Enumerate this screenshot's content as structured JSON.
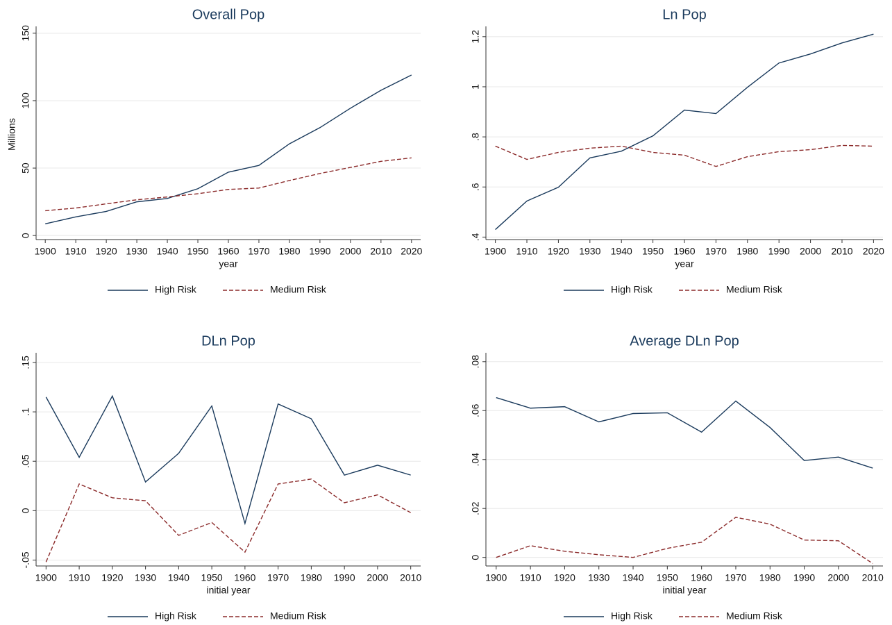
{
  "chart_data": [
    {
      "type": "line",
      "title": "Overall Pop",
      "xlabel": "year",
      "ylabel": "Millions",
      "x": [
        1900,
        1910,
        1920,
        1930,
        1940,
        1950,
        1960,
        1970,
        1980,
        1990,
        2000,
        2010,
        2020
      ],
      "xlim": [
        1897,
        2023
      ],
      "xticks": [
        1900,
        1910,
        1920,
        1930,
        1940,
        1950,
        1960,
        1970,
        1980,
        1990,
        2000,
        2010,
        2020
      ],
      "ylim": [
        -3,
        153
      ],
      "yticks": [
        0,
        50,
        100,
        150
      ],
      "grid": true,
      "legend": "bottom",
      "series": [
        {
          "name": "High Risk",
          "color": "#1a3a5c",
          "style": "solid",
          "values": [
            8.7,
            13.8,
            17.9,
            25,
            27.5,
            34.7,
            47,
            52,
            68,
            80,
            94.4,
            107.7,
            119
          ]
        },
        {
          "name": "Medium Risk",
          "color": "#8b2a2a",
          "style": "dashed",
          "values": [
            18.4,
            20.4,
            23.5,
            26.5,
            28.6,
            31,
            34.2,
            35.2,
            40.8,
            46,
            50.5,
            55,
            57.6
          ]
        }
      ]
    },
    {
      "type": "line",
      "title": "Ln Pop",
      "xlabel": "year",
      "x": [
        1900,
        1910,
        1920,
        1930,
        1940,
        1950,
        1960,
        1970,
        1980,
        1990,
        2000,
        2010,
        2020
      ],
      "xlim": [
        1897,
        2023
      ],
      "xticks": [
        1900,
        1910,
        1920,
        1930,
        1940,
        1950,
        1960,
        1970,
        1980,
        1990,
        2000,
        2010,
        2020
      ],
      "ylim": [
        0.39,
        1.23
      ],
      "yticks": [
        {
          "value": 0.4,
          "label": ".4"
        },
        {
          "value": 0.6,
          "label": ".6"
        },
        {
          "value": 0.8,
          "label": ".8"
        },
        1,
        1.2
      ],
      "grid": true,
      "legend": "bottom",
      "series": [
        {
          "name": "High Risk",
          "color": "#1a3a5c",
          "style": "solid",
          "values": [
            0.43,
            0.544,
            0.599,
            0.716,
            0.743,
            0.804,
            0.907,
            0.893,
            0.998,
            1.095,
            1.131,
            1.175,
            1.21
          ]
        },
        {
          "name": "Medium Risk",
          "color": "#8b2a2a",
          "style": "dashed",
          "values": [
            0.763,
            0.71,
            0.738,
            0.755,
            0.763,
            0.738,
            0.727,
            0.682,
            0.721,
            0.741,
            0.749,
            0.766,
            0.763
          ]
        }
      ]
    },
    {
      "type": "line",
      "title": "DLn Pop",
      "xlabel": "initial year",
      "x": [
        1900,
        1910,
        1920,
        1930,
        1940,
        1950,
        1960,
        1970,
        1980,
        1990,
        2000,
        2010
      ],
      "xlim": [
        1897,
        2013
      ],
      "xticks": [
        1900,
        1910,
        1920,
        1930,
        1940,
        1950,
        1960,
        1970,
        1980,
        1990,
        2000,
        2010
      ],
      "ylim": [
        -0.056,
        0.157
      ],
      "yticks": [
        {
          "value": -0.05,
          "label": "-.05"
        },
        0,
        {
          "value": 0.05,
          "label": ".05"
        },
        {
          "value": 0.1,
          "label": ".1"
        },
        {
          "value": 0.15,
          "label": ".15"
        }
      ],
      "grid": true,
      "legend": "bottom",
      "series": [
        {
          "name": "High Risk",
          "color": "#1a3a5c",
          "style": "solid",
          "values": [
            0.115,
            0.054,
            0.116,
            0.029,
            0.058,
            0.106,
            -0.013,
            0.108,
            0.093,
            0.036,
            0.046,
            0.036
          ]
        },
        {
          "name": "Medium Risk",
          "color": "#8b2a2a",
          "style": "dashed",
          "values": [
            -0.052,
            0.027,
            0.013,
            0.01,
            -0.025,
            -0.012,
            -0.042,
            0.027,
            0.032,
            0.008,
            0.016,
            -0.002
          ]
        }
      ]
    },
    {
      "type": "line",
      "title": "Average DLn Pop",
      "xlabel": "initial year",
      "x": [
        1900,
        1910,
        1920,
        1930,
        1940,
        1950,
        1960,
        1970,
        1980,
        1990,
        2000,
        2010
      ],
      "xlim": [
        1897,
        2013
      ],
      "xticks": [
        1900,
        1910,
        1920,
        1930,
        1940,
        1950,
        1960,
        1970,
        1980,
        1990,
        2000,
        2010
      ],
      "ylim": [
        -0.0035,
        0.0825
      ],
      "yticks": [
        0,
        {
          "value": 0.02,
          "label": ".02"
        },
        {
          "value": 0.04,
          "label": ".04"
        },
        {
          "value": 0.06,
          "label": ".06"
        },
        {
          "value": 0.08,
          "label": ".08"
        }
      ],
      "grid": true,
      "legend": "bottom",
      "series": [
        {
          "name": "High Risk",
          "color": "#1a3a5c",
          "style": "solid",
          "values": [
            0.0653,
            0.061,
            0.0616,
            0.0554,
            0.0588,
            0.0591,
            0.0512,
            0.0639,
            0.0531,
            0.0396,
            0.041,
            0.0365
          ]
        },
        {
          "name": "Medium Risk",
          "color": "#8b2a2a",
          "style": "dashed",
          "values": [
            0,
            0.0048,
            0.0025,
            0.0011,
            0,
            0.0037,
            0.0062,
            0.0164,
            0.0136,
            0.0071,
            0.0068,
            -0.0025
          ]
        }
      ]
    }
  ]
}
